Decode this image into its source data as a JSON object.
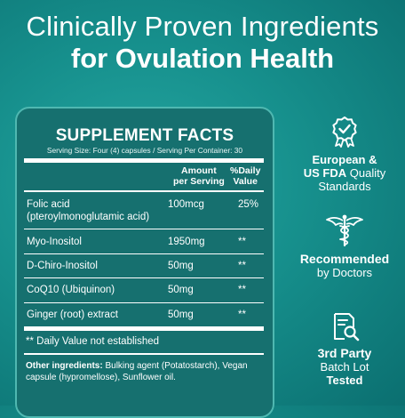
{
  "headline": {
    "line1": "Clinically Proven Ingredients",
    "line2": "for Ovulation Health"
  },
  "facts": {
    "title": "SUPPLEMENT FACTS",
    "serving": "Serving Size: Four (4) capsules / Serving Per Container: 30",
    "col_amount_1": "Amount",
    "col_amount_2": "per Serving",
    "col_dv_1": "%Daily",
    "col_dv_2": "Value",
    "rows": [
      {
        "name1": "Folic acid",
        "name2": "(pteroylmonoglutamic acid)",
        "amount": "100mcg",
        "dv": "25%"
      },
      {
        "name1": "Myo-Inositol",
        "amount": "1950mg",
        "dv": "**"
      },
      {
        "name1": "D-Chiro-Inositol",
        "amount": "50mg",
        "dv": "**"
      },
      {
        "name1": "CoQ10 (Ubiquinon)",
        "amount": "50mg",
        "dv": "**"
      },
      {
        "name1": "Ginger (root) extract",
        "amount": "50mg",
        "dv": "**"
      }
    ],
    "note": "** Daily Value not established",
    "other_label": "Other ingredients:",
    "other_text": "Bulking agent (Potatostarch), Vegan capsule (hypromellose), Sunflower oil."
  },
  "badges": [
    {
      "icon": "quality-seal-icon",
      "bold1": "European &",
      "bold2": "US FDA",
      "text2": "Quality",
      "text3": "Standards"
    },
    {
      "icon": "caduceus-icon",
      "bold1": "Recommended",
      "text2": "by Doctors"
    },
    {
      "icon": "document-search-icon",
      "bold1": "3rd Party",
      "text2": "Batch Lot",
      "bold3": "Tested"
    }
  ],
  "colors": {
    "background": "#168f8c",
    "panel": "#16706f",
    "panel_border": "#4fb8b1",
    "text": "#ffffff"
  }
}
